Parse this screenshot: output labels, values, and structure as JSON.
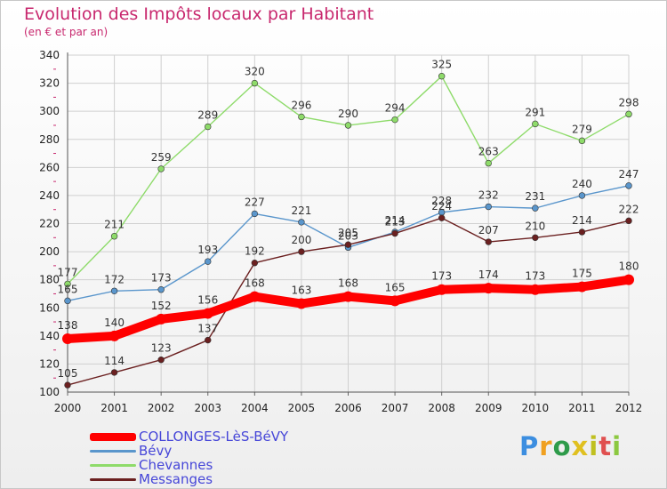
{
  "header": {
    "title": "Evolution des Impôts locaux par Habitant",
    "subtitle": "(en € et par an)"
  },
  "logo": {
    "letters": [
      "P",
      "r",
      "o",
      "x",
      "i",
      "t",
      "i"
    ],
    "colors": [
      "#3c8ee0",
      "#f0a020",
      "#2e9b4a",
      "#e0c020",
      "#c0c020",
      "#e05050",
      "#8cc840"
    ]
  },
  "colors": {
    "title": "#c8286e",
    "legend_text": "#4646d8",
    "grid": "#d0d0d0",
    "axis_tick": "#c8286e"
  },
  "chart_data": {
    "type": "line",
    "title": "Evolution des Impôts locaux par Habitant",
    "subtitle": "(en € et par an)",
    "xlabel": "",
    "ylabel": "",
    "x": [
      "2000",
      "2001",
      "2002",
      "2003",
      "2004",
      "2005",
      "2006",
      "2007",
      "2008",
      "2009",
      "2010",
      "2011",
      "2012"
    ],
    "ylim": [
      100,
      340
    ],
    "yticks": [
      "100",
      "120",
      "140",
      "160",
      "180",
      "200",
      "220",
      "240",
      "260",
      "280",
      "300",
      "320",
      "340"
    ],
    "grid": true,
    "legend_position": "bottom-left",
    "series": [
      {
        "name": "COLLONGES-LèS-BéVY",
        "color": "#ff0000",
        "values": [
          138,
          140,
          152,
          156,
          168,
          163,
          168,
          165,
          173,
          174,
          173,
          175,
          180
        ]
      },
      {
        "name": "Bévy",
        "color": "#5a96cc",
        "values": [
          165,
          172,
          173,
          193,
          227,
          221,
          203,
          214,
          228,
          232,
          231,
          240,
          247
        ]
      },
      {
        "name": "Chevannes",
        "color": "#8edb6a",
        "values": [
          177,
          211,
          259,
          289,
          320,
          296,
          290,
          294,
          325,
          263,
          291,
          279,
          298
        ]
      },
      {
        "name": "Messanges",
        "color": "#6b2020",
        "values": [
          105,
          114,
          123,
          137,
          192,
          200,
          205,
          213,
          224,
          207,
          210,
          214,
          222
        ]
      }
    ]
  }
}
